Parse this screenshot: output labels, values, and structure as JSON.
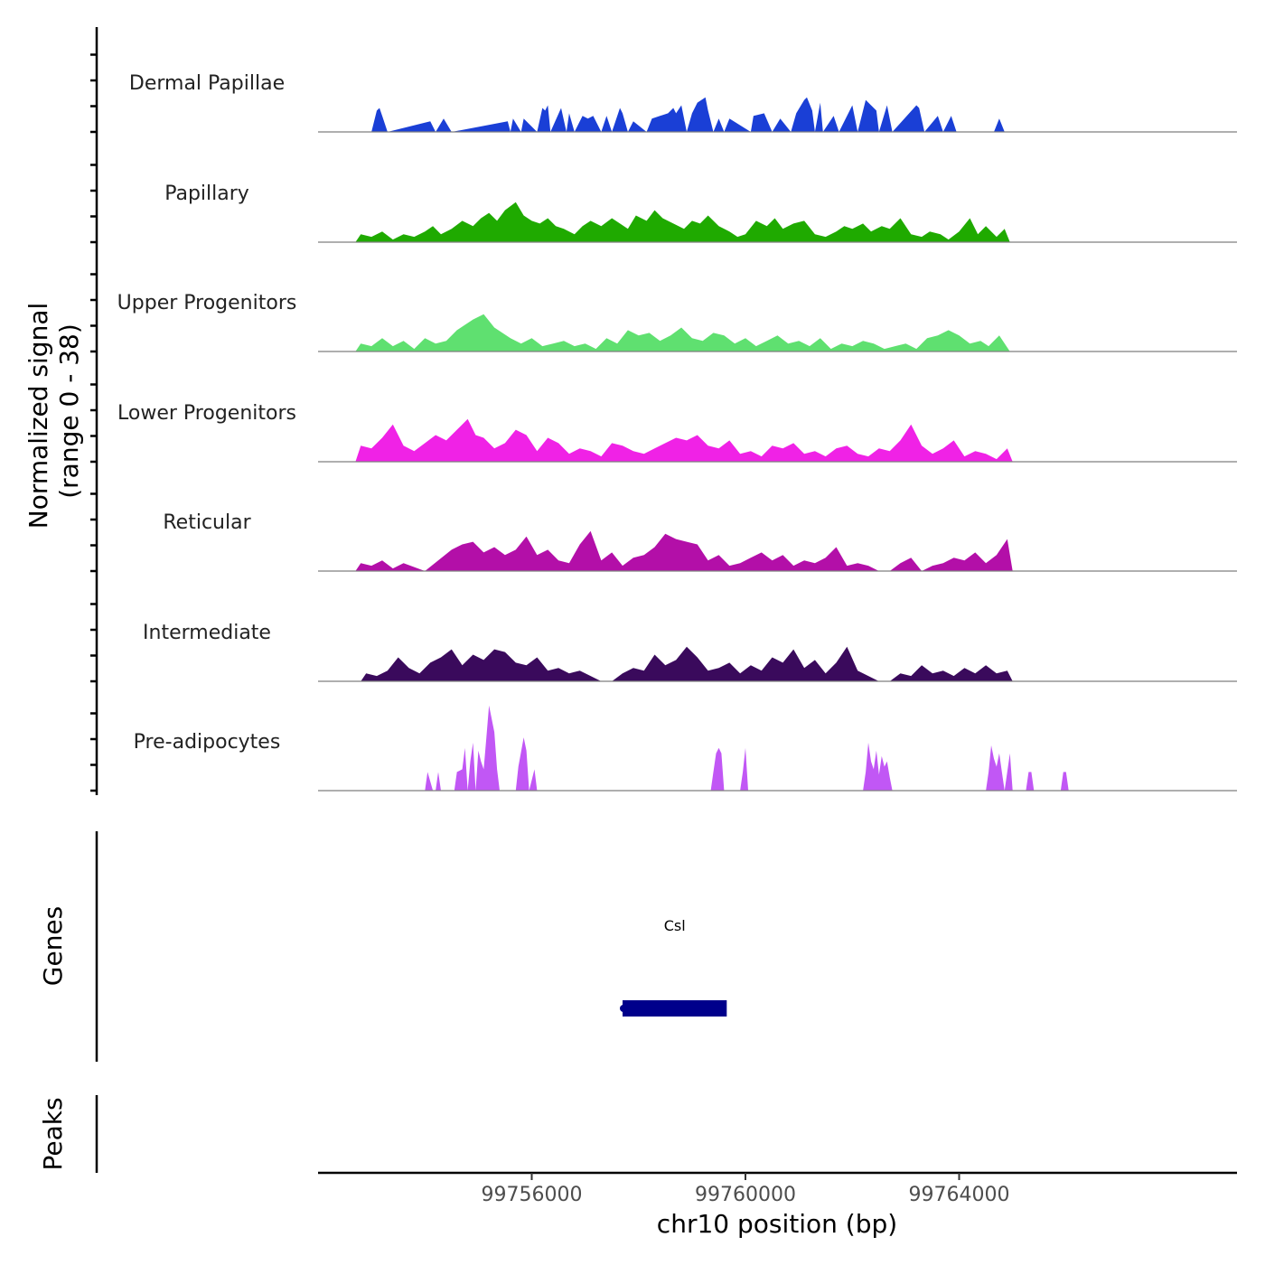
{
  "chart_data": {
    "type": "area",
    "title": "",
    "ylabel_line1": "Normalized signal",
    "ylabel_line2": "(range 0 - 38)",
    "ylim": [
      0,
      38
    ],
    "xlabel": "chr10 position (bp)",
    "xlim": [
      99752000,
      99769200
    ],
    "xticks": [
      99756000,
      99760000,
      99764000
    ],
    "xtick_labels": [
      "99756000",
      "99760000",
      "99764000"
    ],
    "tracks": [
      {
        "name": "Dermal Papillae",
        "color": "#1a3fd6",
        "x": [
          99753000,
          99753100,
          99753150,
          99753200,
          99753300,
          99754100,
          99754200,
          99754350,
          99754500,
          99755550,
          99755600,
          99755650,
          99755800,
          99755850,
          99756100,
          99756200,
          99756250,
          99756300,
          99756350,
          99756550,
          99756650,
          99756700,
          99756800,
          99756950,
          99757050,
          99757150,
          99757300,
          99757400,
          99757500,
          99757650,
          99757700,
          99757800,
          99757900,
          99758150,
          99758250,
          99758400,
          99758550,
          99758650,
          99758700,
          99758800,
          99758900,
          99759000,
          99759100,
          99759250,
          99759300,
          99759400,
          99759500,
          99759600,
          99759700,
          99760100,
          99760150,
          99760350,
          99760500,
          99760650,
          99760850,
          99760950,
          99761100,
          99761150,
          99761250,
          99761300,
          99761400,
          99761450,
          99761650,
          99761750,
          99762000,
          99762100,
          99762250,
          99762350,
          99762450,
          99762500,
          99762650,
          99762750,
          99763200,
          99763250,
          99763350,
          99763600,
          99763700,
          99763850,
          99763950,
          99764650,
          99764750,
          99764850
        ],
        "y": [
          0,
          8,
          9,
          6,
          0,
          4,
          0,
          5,
          0,
          4,
          0,
          5,
          0,
          5,
          0,
          9,
          8,
          10,
          0,
          9,
          0,
          7,
          0,
          6,
          5,
          6,
          0,
          6,
          0,
          9,
          7,
          0,
          4,
          0,
          5,
          6,
          7,
          9,
          7,
          10,
          0,
          7,
          11,
          13,
          8,
          0,
          5,
          0,
          5,
          0,
          6,
          7,
          0,
          5,
          0,
          7,
          12,
          13,
          8,
          0,
          11,
          0,
          6,
          0,
          10,
          0,
          12,
          10,
          8,
          0,
          10,
          0,
          10,
          9,
          0,
          6,
          0,
          6,
          0,
          0,
          5,
          0
        ]
      },
      {
        "name": "Papillary",
        "color": "#1faa00",
        "x": [
          99752700,
          99752800,
          99753000,
          99753200,
          99753400,
          99753600,
          99753800,
          99754000,
          99754150,
          99754300,
          99754500,
          99754700,
          99754900,
          99755050,
          99755200,
          99755350,
          99755500,
          99755700,
          99755850,
          99756000,
          99756150,
          99756300,
          99756450,
          99756600,
          99756800,
          99756950,
          99757100,
          99757300,
          99757500,
          99757650,
          99757800,
          99757950,
          99758150,
          99758300,
          99758450,
          99758650,
          99758850,
          99759000,
          99759150,
          99759300,
          99759500,
          99759700,
          99759850,
          99760000,
          99760200,
          99760400,
          99760550,
          99760700,
          99760900,
          99761100,
          99761300,
          99761500,
          99761700,
          99761850,
          99762000,
          99762200,
          99762350,
          99762550,
          99762700,
          99762900,
          99763100,
          99763300,
          99763450,
          99763650,
          99763800,
          99764000,
          99764200,
          99764350,
          99764500,
          99764700,
          99764850,
          99764950
        ],
        "y": [
          0,
          3,
          2,
          4,
          1,
          3,
          2,
          4,
          6,
          3,
          5,
          8,
          6,
          9,
          11,
          8,
          12,
          15,
          10,
          8,
          7,
          9,
          6,
          5,
          3,
          6,
          8,
          6,
          9,
          7,
          5,
          10,
          8,
          12,
          9,
          7,
          5,
          8,
          7,
          10,
          6,
          4,
          2,
          3,
          8,
          6,
          9,
          5,
          7,
          8,
          3,
          2,
          4,
          6,
          5,
          7,
          4,
          6,
          5,
          9,
          3,
          2,
          4,
          3,
          1,
          4,
          9,
          3,
          6,
          2,
          5,
          0
        ]
      },
      {
        "name": "Upper Progenitors",
        "color": "#5fe070",
        "x": [
          99752700,
          99752800,
          99753000,
          99753200,
          99753400,
          99753600,
          99753800,
          99754000,
          99754200,
          99754400,
          99754600,
          99754750,
          99754900,
          99755100,
          99755300,
          99755450,
          99755600,
          99755800,
          99756000,
          99756200,
          99756400,
          99756600,
          99756800,
          99757000,
          99757200,
          99757400,
          99757600,
          99757800,
          99758000,
          99758200,
          99758400,
          99758600,
          99758800,
          99759000,
          99759200,
          99759400,
          99759600,
          99759800,
          99760000,
          99760200,
          99760400,
          99760600,
          99760800,
          99761000,
          99761200,
          99761400,
          99761600,
          99761800,
          99762000,
          99762200,
          99762400,
          99762600,
          99762800,
          99763000,
          99763200,
          99763400,
          99763600,
          99763800,
          99764000,
          99764200,
          99764400,
          99764550,
          99764750,
          99764950
        ],
        "y": [
          0,
          3,
          2,
          5,
          2,
          4,
          1,
          5,
          3,
          4,
          8,
          10,
          12,
          14,
          9,
          7,
          5,
          3,
          5,
          2,
          3,
          4,
          2,
          3,
          1,
          5,
          3,
          8,
          6,
          7,
          4,
          6,
          9,
          5,
          4,
          7,
          6,
          3,
          5,
          2,
          4,
          6,
          3,
          4,
          2,
          5,
          1,
          3,
          2,
          4,
          3,
          1,
          2,
          3,
          1,
          5,
          6,
          8,
          6,
          3,
          4,
          2,
          6,
          0
        ]
      },
      {
        "name": "Lower Progenitors",
        "color": "#f022e6",
        "x": [
          99752700,
          99752800,
          99753000,
          99753200,
          99753400,
          99753600,
          99753800,
          99754000,
          99754200,
          99754400,
          99754600,
          99754800,
          99754950,
          99755100,
          99755300,
          99755500,
          99755700,
          99755900,
          99756100,
          99756300,
          99756500,
          99756700,
          99756900,
          99757100,
          99757300,
          99757500,
          99757700,
          99757900,
          99758100,
          99758300,
          99758500,
          99758700,
          99758900,
          99759100,
          99759300,
          99759500,
          99759700,
          99759900,
          99760100,
          99760300,
          99760500,
          99760700,
          99760900,
          99761100,
          99761300,
          99761500,
          99761700,
          99761900,
          99762100,
          99762300,
          99762500,
          99762700,
          99762900,
          99763100,
          99763300,
          99763500,
          99763700,
          99763900,
          99764100,
          99764300,
          99764500,
          99764700,
          99764900,
          99765000
        ],
        "y": [
          0,
          6,
          5,
          9,
          14,
          6,
          4,
          7,
          10,
          8,
          12,
          16,
          10,
          9,
          5,
          7,
          12,
          10,
          4,
          9,
          7,
          3,
          5,
          4,
          2,
          7,
          6,
          4,
          3,
          5,
          7,
          9,
          8,
          10,
          6,
          5,
          8,
          3,
          4,
          2,
          6,
          5,
          7,
          3,
          4,
          2,
          5,
          6,
          3,
          2,
          5,
          4,
          8,
          14,
          6,
          3,
          5,
          8,
          2,
          4,
          3,
          1,
          5,
          0
        ]
      },
      {
        "name": "Reticular",
        "color": "#b30fa8",
        "x": [
          99752700,
          99752800,
          99753000,
          99753200,
          99753400,
          99753600,
          99754000,
          99754500,
          99754700,
          99754900,
          99755100,
          99755300,
          99755500,
          99755700,
          99755900,
          99756100,
          99756300,
          99756500,
          99756700,
          99756900,
          99757100,
          99757300,
          99757500,
          99757700,
          99757900,
          99758100,
          99758300,
          99758500,
          99758700,
          99758900,
          99759100,
          99759300,
          99759500,
          99759700,
          99759900,
          99760100,
          99760300,
          99760500,
          99760700,
          99760900,
          99761100,
          99761300,
          99761500,
          99761700,
          99761900,
          99762100,
          99762300,
          99762500,
          99762700,
          99762900,
          99763100,
          99763300,
          99763500,
          99763700,
          99763900,
          99764100,
          99764300,
          99764500,
          99764700,
          99764900,
          99765000
        ],
        "y": [
          0,
          3,
          2,
          4,
          1,
          3,
          0,
          8,
          10,
          11,
          7,
          9,
          6,
          8,
          13,
          6,
          8,
          4,
          3,
          10,
          15,
          4,
          7,
          2,
          5,
          6,
          9,
          14,
          12,
          11,
          10,
          4,
          6,
          2,
          3,
          5,
          7,
          4,
          6,
          2,
          4,
          3,
          5,
          9,
          2,
          3,
          2,
          0,
          0,
          3,
          5,
          0,
          2,
          3,
          5,
          4,
          7,
          3,
          6,
          12,
          0
        ]
      },
      {
        "name": "Intermediate",
        "color": "#3a0a5c",
        "x": [
          99752800,
          99752900,
          99753100,
          99753300,
          99753500,
          99753700,
          99753900,
          99754100,
          99754300,
          99754500,
          99754700,
          99754900,
          99755100,
          99755300,
          99755500,
          99755700,
          99755900,
          99756100,
          99756300,
          99756500,
          99756700,
          99756900,
          99757100,
          99757300,
          99757500,
          99757700,
          99757900,
          99758100,
          99758300,
          99758500,
          99758700,
          99758900,
          99759100,
          99759300,
          99759500,
          99759700,
          99759900,
          99760100,
          99760300,
          99760500,
          99760700,
          99760900,
          99761100,
          99761300,
          99761500,
          99761700,
          99761900,
          99762100,
          99762300,
          99762500,
          99762700,
          99762900,
          99763100,
          99763300,
          99763500,
          99763700,
          99763900,
          99764100,
          99764300,
          99764500,
          99764700,
          99764900,
          99765000
        ],
        "y": [
          0,
          3,
          2,
          4,
          9,
          5,
          3,
          7,
          9,
          12,
          6,
          10,
          8,
          12,
          11,
          7,
          6,
          9,
          4,
          5,
          3,
          4,
          2,
          0,
          0,
          3,
          5,
          4,
          10,
          6,
          8,
          13,
          9,
          4,
          5,
          7,
          3,
          6,
          4,
          9,
          7,
          12,
          5,
          8,
          3,
          7,
          13,
          4,
          2,
          0,
          0,
          3,
          2,
          6,
          3,
          4,
          2,
          5,
          3,
          6,
          3,
          4,
          0
        ]
      },
      {
        "name": "Pre-adipocytes",
        "color": "#c157f5",
        "x": [
          99754000,
          99754050,
          99754150,
          99754200,
          99754250,
          99754300,
          99754550,
          99754600,
          99754700,
          99754750,
          99754800,
          99754850,
          99754900,
          99754950,
          99755000,
          99755050,
          99755100,
          99755150,
          99755200,
          99755300,
          99755350,
          99755400,
          99755450,
          99755500,
          99755700,
          99755750,
          99755850,
          99755900,
          99755950,
          99756050,
          99756100,
          99759350,
          99759400,
          99759450,
          99759500,
          99759550,
          99759600,
          99759900,
          99759950,
          99760000,
          99760050,
          99762200,
          99762250,
          99762300,
          99762350,
          99762400,
          99762450,
          99762500,
          99762550,
          99762600,
          99762650,
          99762700,
          99762750,
          99764500,
          99764550,
          99764600,
          99764650,
          99764700,
          99764750,
          99764800,
          99764850,
          99764950,
          99765000,
          99765250,
          99765300,
          99765350,
          99765400,
          99765450,
          99765900,
          99765950,
          99766000,
          99766050
        ],
        "y": [
          0,
          7,
          0,
          0,
          7,
          0,
          0,
          7,
          8,
          16,
          0,
          11,
          18,
          0,
          15,
          11,
          8,
          20,
          32,
          22,
          8,
          0,
          0,
          0,
          0,
          9,
          20,
          15,
          0,
          8,
          0,
          0,
          7,
          14,
          16,
          14,
          0,
          0,
          7,
          16,
          0,
          0,
          7,
          18,
          11,
          8,
          15,
          6,
          13,
          9,
          11,
          5,
          0,
          0,
          7,
          17,
          12,
          9,
          14,
          7,
          0,
          14,
          0,
          0,
          7,
          7,
          0,
          0,
          0,
          7,
          7,
          0
        ]
      }
    ],
    "gene_track": {
      "label": "Genes",
      "genes": [
        {
          "name": "Csl",
          "start": 99757700,
          "end": 99759650,
          "color": "#00008b"
        }
      ]
    },
    "peaks_track": {
      "label": "Peaks",
      "peaks": []
    }
  }
}
